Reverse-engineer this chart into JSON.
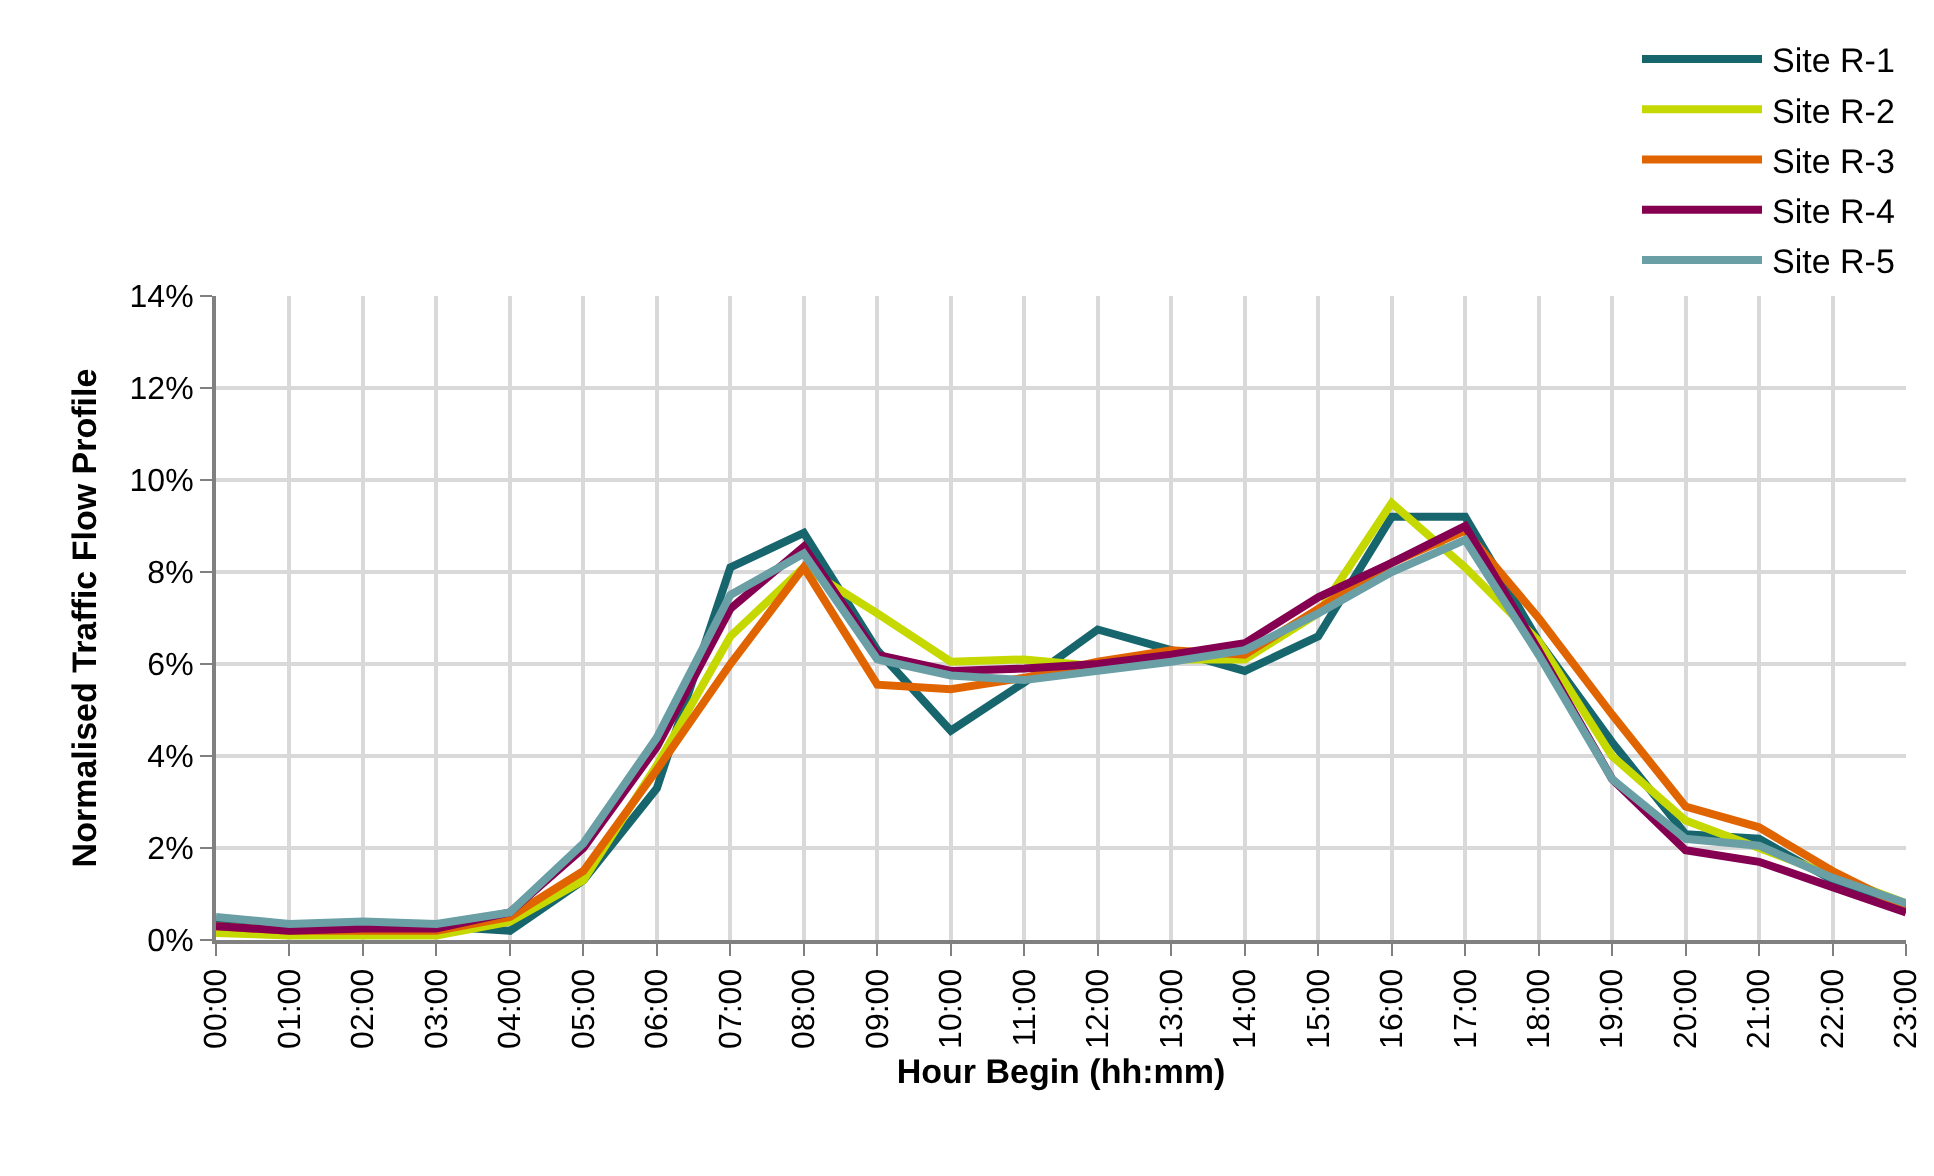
{
  "chart_data": {
    "type": "line",
    "xlabel": "Hour Begin (hh:mm)",
    "ylabel": "Normalised Traffic Flow Profile",
    "categories": [
      "00:00",
      "01:00",
      "02:00",
      "03:00",
      "04:00",
      "05:00",
      "06:00",
      "07:00",
      "08:00",
      "09:00",
      "10:00",
      "11:00",
      "12:00",
      "13:00",
      "14:00",
      "15:00",
      "16:00",
      "17:00",
      "18:00",
      "19:00",
      "20:00",
      "21:00",
      "22:00",
      "23:00"
    ],
    "ylim": [
      0,
      14
    ],
    "yticks": [
      {
        "value": 0,
        "label": "0%"
      },
      {
        "value": 2,
        "label": "2%"
      },
      {
        "value": 4,
        "label": "4%"
      },
      {
        "value": 6,
        "label": "6%"
      },
      {
        "value": 8,
        "label": "8%"
      },
      {
        "value": 10,
        "label": "10%"
      },
      {
        "value": 12,
        "label": "12%"
      },
      {
        "value": 14,
        "label": "14%"
      }
    ],
    "grid": true,
    "legend": "top right",
    "marker": "none",
    "line_style": "solid",
    "series": [
      {
        "name": "Site R-1",
        "color": "#17666e",
        "values": [
          0.4,
          0.3,
          0.3,
          0.3,
          0.2,
          1.3,
          3.3,
          8.1,
          8.85,
          6.3,
          4.55,
          5.6,
          6.75,
          6.3,
          5.85,
          6.6,
          9.2,
          9.2,
          6.5,
          4.3,
          2.3,
          2.2,
          1.3,
          0.7
        ]
      },
      {
        "name": "Site R-2",
        "color": "#c5d800",
        "values": [
          0.15,
          0.1,
          0.1,
          0.1,
          0.4,
          1.3,
          3.8,
          6.6,
          8.1,
          7.1,
          6.05,
          6.1,
          5.95,
          6.1,
          6.1,
          7.1,
          9.5,
          8.1,
          6.5,
          4.0,
          2.6,
          2.0,
          1.4,
          0.8
        ]
      },
      {
        "name": "Site R-3",
        "color": "#e06500",
        "values": [
          0.3,
          0.2,
          0.2,
          0.2,
          0.5,
          1.5,
          3.7,
          6.0,
          8.1,
          5.55,
          5.45,
          5.7,
          6.05,
          6.3,
          6.2,
          7.2,
          8.2,
          8.9,
          7.0,
          4.9,
          2.9,
          2.45,
          1.5,
          0.7
        ]
      },
      {
        "name": "Site R-4",
        "color": "#850050",
        "values": [
          0.3,
          0.2,
          0.25,
          0.25,
          0.6,
          2.0,
          4.2,
          7.2,
          8.55,
          6.2,
          5.85,
          5.9,
          6.0,
          6.2,
          6.45,
          7.45,
          8.2,
          9.0,
          6.3,
          3.5,
          1.95,
          1.7,
          1.15,
          0.6
        ]
      },
      {
        "name": "Site R-5",
        "color": "#6a9fa5",
        "values": [
          0.5,
          0.35,
          0.4,
          0.35,
          0.6,
          2.1,
          4.4,
          7.5,
          8.4,
          6.1,
          5.75,
          5.65,
          5.85,
          6.05,
          6.3,
          7.1,
          8.0,
          8.7,
          6.2,
          3.5,
          2.2,
          2.05,
          1.35,
          0.8
        ]
      }
    ]
  }
}
